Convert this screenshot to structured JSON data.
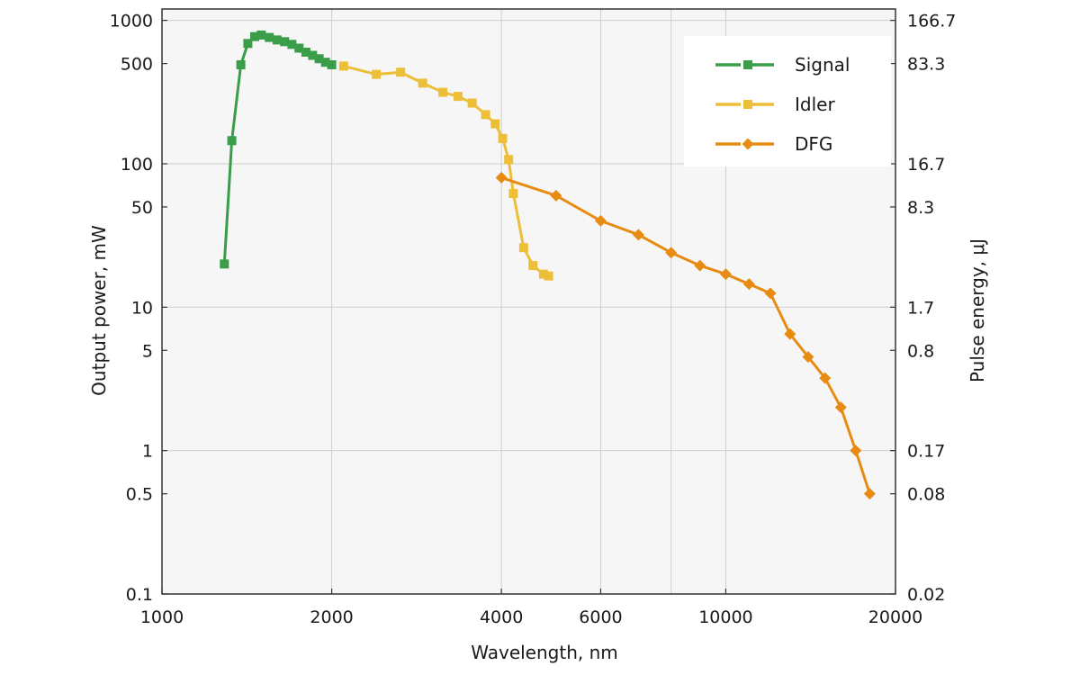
{
  "chart_data": {
    "type": "line",
    "xlabel": "Wavelength, nm",
    "ylabel": "Output power, mW",
    "ylabel_right": "Pulse energy, μJ",
    "x_scale": "log",
    "y_scale": "log",
    "xlim": [
      1000,
      20000
    ],
    "ylim": [
      0.1,
      1200
    ],
    "x_ticks": [
      1000,
      2000,
      4000,
      6000,
      10000,
      20000
    ],
    "x_tick_labels": [
      "1000",
      "2000",
      "4000",
      "6000",
      "10000",
      "20000"
    ],
    "x_gridlines": [
      2000,
      4000,
      6000,
      8000,
      10000
    ],
    "y_ticks": [
      0.1,
      0.5,
      1,
      5,
      10,
      50,
      100,
      500,
      1000
    ],
    "y_tick_labels": [
      "0.1",
      "0.5",
      "1",
      "5",
      "10",
      "50",
      "100",
      "500",
      "1000"
    ],
    "y_gridlines": [
      1,
      10,
      100,
      1000
    ],
    "y2_ticks": [
      {
        "at": 1000,
        "label": "166.7"
      },
      {
        "at": 500,
        "label": "83.3"
      },
      {
        "at": 100,
        "label": "16.7"
      },
      {
        "at": 50,
        "label": "8.3"
      },
      {
        "at": 10,
        "label": "1.7"
      },
      {
        "at": 5,
        "label": "0.8"
      },
      {
        "at": 1,
        "label": "0.17"
      },
      {
        "at": 0.5,
        "label": "0.08"
      },
      {
        "at": 0.1,
        "label": "0.02"
      }
    ],
    "grid": true,
    "legend_position": "top-right",
    "series": [
      {
        "name": "Signal",
        "color": "#3a9d4a",
        "marker": "square",
        "x": [
          1290,
          1330,
          1380,
          1420,
          1460,
          1500,
          1550,
          1600,
          1650,
          1700,
          1750,
          1800,
          1850,
          1900,
          1950,
          2000
        ],
        "y": [
          20,
          145,
          490,
          690,
          770,
          790,
          760,
          730,
          710,
          680,
          640,
          600,
          570,
          540,
          510,
          490
        ]
      },
      {
        "name": "Idler",
        "color": "#edbe38",
        "marker": "square",
        "x": [
          2100,
          2400,
          2650,
          2900,
          3150,
          3350,
          3550,
          3750,
          3900,
          4020,
          4120,
          4200,
          4380,
          4550,
          4750,
          4850
        ],
        "y": [
          480,
          420,
          435,
          365,
          315,
          295,
          265,
          220,
          190,
          150,
          107,
          62,
          26,
          19.5,
          17,
          16.5
        ]
      },
      {
        "name": "DFG",
        "color": "#e88b12",
        "marker": "diamond",
        "x": [
          4000,
          5000,
          6000,
          7000,
          8000,
          9000,
          10000,
          11000,
          12000,
          13000,
          14000,
          15000,
          16000,
          17000,
          18000
        ],
        "y": [
          80,
          60,
          40,
          32,
          24,
          19.5,
          17,
          14.5,
          12.5,
          6.5,
          4.5,
          3.2,
          2,
          1,
          0.5
        ]
      }
    ]
  }
}
